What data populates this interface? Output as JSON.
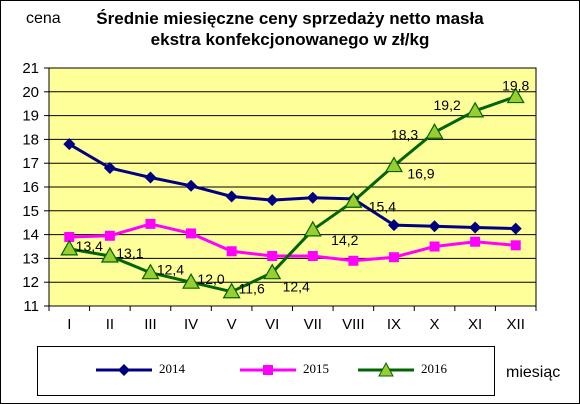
{
  "chart_data": {
    "type": "line",
    "title": "Średnie miesięczne ceny sprzedaży netto masła ekstra konfekcjonowanego w zł/kg",
    "ylabel": "cena",
    "xlabel": "miesiąc",
    "categories": [
      "I",
      "II",
      "III",
      "IV",
      "V",
      "VI",
      "VII",
      "VIII",
      "IX",
      "X",
      "XI",
      "XII"
    ],
    "ylim": [
      11,
      21
    ],
    "yticks": [
      11,
      12,
      13,
      14,
      15,
      16,
      17,
      18,
      19,
      20,
      21
    ],
    "grid": true,
    "legend": "bottom",
    "series": [
      {
        "name": "2014",
        "color": "#000080",
        "marker": "diamond",
        "values": [
          17.8,
          16.8,
          16.4,
          16.05,
          15.6,
          15.45,
          15.55,
          15.5,
          14.4,
          14.35,
          14.3,
          14.25
        ]
      },
      {
        "name": "2015",
        "color": "#ff00ff",
        "marker": "square",
        "values": [
          13.9,
          13.95,
          14.45,
          14.05,
          13.3,
          13.1,
          13.1,
          12.9,
          13.05,
          13.5,
          13.7,
          13.55
        ]
      },
      {
        "name": "2016",
        "color": "#006400",
        "marker": "triangle",
        "values": [
          13.4,
          13.1,
          12.4,
          12.0,
          11.6,
          12.4,
          14.2,
          15.4,
          16.9,
          18.3,
          19.2,
          19.8
        ],
        "data_labels": [
          "13,4",
          "13,1",
          "12,4",
          "12,0",
          "11,6",
          "12,4",
          "14,2",
          "15,4",
          "16,9",
          "18,3",
          "19,2",
          "19,8"
        ]
      }
    ]
  },
  "colors": {
    "plot_background": "#ffff99",
    "frame": "#000000"
  }
}
